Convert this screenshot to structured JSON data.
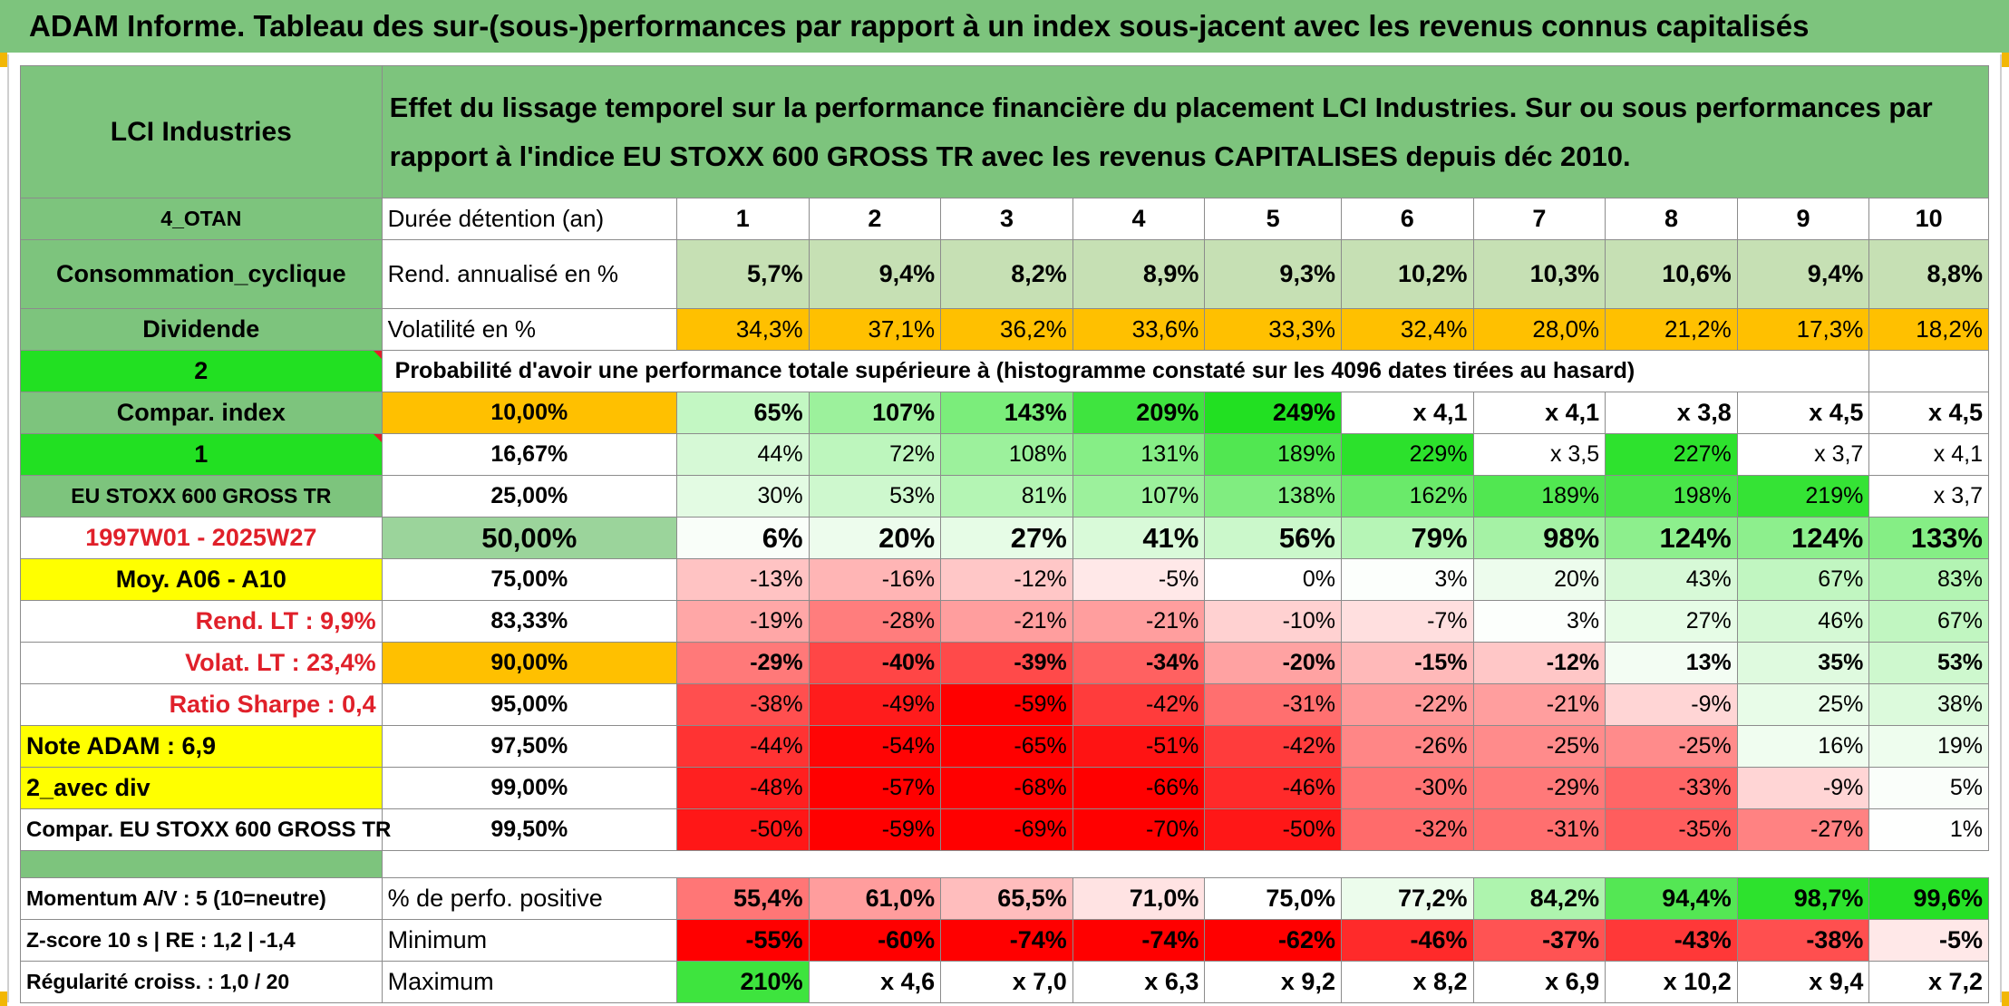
{
  "title": "ADAM Informe. Tableau des sur-(sous-)performances par rapport à un index sous-jacent avec les revenus connus capitalisés",
  "company": "LCI Industries",
  "description": "Effet du lissage temporel sur la performance financière du placement LCI Industries. Sur ou sous performances par rapport à l'indice EU STOXX 600 GROSS TR avec les revenus CAPITALISES depuis déc 2010.",
  "left_labels": {
    "code": "4_OTAN",
    "sector": "Consommation_cyclique",
    "type": "Dividende",
    "num_2": "2",
    "compar_index": "Compar. index",
    "num_1": "1",
    "index_name": "EU STOXX 600 GROSS TR",
    "period": "1997W01 - 2025W27",
    "moy": "Moy. A06 - A10",
    "rend_lt": "Rend. LT :   9,9%",
    "volat_lt": "Volat. LT :   23,4%",
    "sharpe": "Ratio Sharpe :   0,4",
    "note": "Note ADAM : 6,9",
    "avec_div": "2_avec div",
    "compar_full": "Compar. EU STOXX 600 GROSS TR",
    "momentum": "Momentum A/V : 5 (10=neutre)",
    "zscore": "Z-score 10 s | RE : 1,2 | -1,4",
    "regularite": "Régularité croiss. : 1,0 / 20"
  },
  "header_labels": {
    "duree": "Durée détention (an)",
    "rend": "Rend. annualisé en %",
    "volat": "Volatilité en %",
    "proba": "Probabilité d'avoir une performance totale supérieure à (histogramme constaté sur les 4096 dates tirées au hasard)",
    "pct_pos": "% de perfo. positive",
    "minimum": "Minimum",
    "maximum": "Maximum"
  },
  "years": [
    "1",
    "2",
    "3",
    "4",
    "5",
    "6",
    "7",
    "8",
    "9",
    "10"
  ],
  "rend": [
    "5,7%",
    "9,4%",
    "8,2%",
    "8,9%",
    "9,3%",
    "10,2%",
    "10,3%",
    "10,6%",
    "9,4%",
    "8,8%"
  ],
  "volat": [
    "34,3%",
    "37,1%",
    "36,2%",
    "33,6%",
    "33,3%",
    "32,4%",
    "28,0%",
    "21,2%",
    "17,3%",
    "18,2%"
  ],
  "quantiles": [
    {
      "q": "10,00%",
      "vals": [
        "65%",
        "107%",
        "143%",
        "209%",
        "249%",
        "x 4,1",
        "x 4,1",
        "x 3,8",
        "x 4,5",
        "x 4,5"
      ]
    },
    {
      "q": "16,67%",
      "vals": [
        "44%",
        "72%",
        "108%",
        "131%",
        "189%",
        "229%",
        "x 3,5",
        "227%",
        "x 3,7",
        "x 4,1"
      ]
    },
    {
      "q": "25,00%",
      "vals": [
        "30%",
        "53%",
        "81%",
        "107%",
        "138%",
        "162%",
        "189%",
        "198%",
        "219%",
        "x 3,7"
      ]
    },
    {
      "q": "50,00%",
      "vals": [
        "6%",
        "20%",
        "27%",
        "41%",
        "56%",
        "79%",
        "98%",
        "124%",
        "124%",
        "133%"
      ]
    },
    {
      "q": "75,00%",
      "vals": [
        "-13%",
        "-16%",
        "-12%",
        "-5%",
        "0%",
        "3%",
        "20%",
        "43%",
        "67%",
        "83%"
      ]
    },
    {
      "q": "83,33%",
      "vals": [
        "-19%",
        "-28%",
        "-21%",
        "-21%",
        "-10%",
        "-7%",
        "3%",
        "27%",
        "46%",
        "67%"
      ]
    },
    {
      "q": "90,00%",
      "vals": [
        "-29%",
        "-40%",
        "-39%",
        "-34%",
        "-20%",
        "-15%",
        "-12%",
        "13%",
        "35%",
        "53%"
      ]
    },
    {
      "q": "95,00%",
      "vals": [
        "-38%",
        "-49%",
        "-59%",
        "-42%",
        "-31%",
        "-22%",
        "-21%",
        "-9%",
        "25%",
        "38%"
      ]
    },
    {
      "q": "97,50%",
      "vals": [
        "-44%",
        "-54%",
        "-65%",
        "-51%",
        "-42%",
        "-26%",
        "-25%",
        "-25%",
        "16%",
        "19%"
      ]
    },
    {
      "q": "99,00%",
      "vals": [
        "-48%",
        "-57%",
        "-68%",
        "-66%",
        "-46%",
        "-30%",
        "-29%",
        "-33%",
        "-9%",
        "5%"
      ]
    },
    {
      "q": "99,50%",
      "vals": [
        "-50%",
        "-59%",
        "-69%",
        "-70%",
        "-50%",
        "-32%",
        "-31%",
        "-35%",
        "-27%",
        "1%"
      ]
    }
  ],
  "pct_pos": [
    "55,4%",
    "61,0%",
    "65,5%",
    "71,0%",
    "75,0%",
    "77,2%",
    "84,2%",
    "94,4%",
    "98,7%",
    "99,6%"
  ],
  "minimum": [
    "-55%",
    "-60%",
    "-74%",
    "-74%",
    "-62%",
    "-46%",
    "-37%",
    "-43%",
    "-38%",
    "-5%"
  ],
  "maximum": [
    "210%",
    "x 4,6",
    "x 7,0",
    "x 6,3",
    "x 9,2",
    "x 8,2",
    "x 6,9",
    "x 10,2",
    "x 9,4",
    "x 7,2"
  ],
  "colors": {
    "header_green": "#7dc47d",
    "bright_green": "#22e022",
    "yellow": "#ffff00",
    "orange": "#ffc000",
    "red": "#ff0000"
  }
}
